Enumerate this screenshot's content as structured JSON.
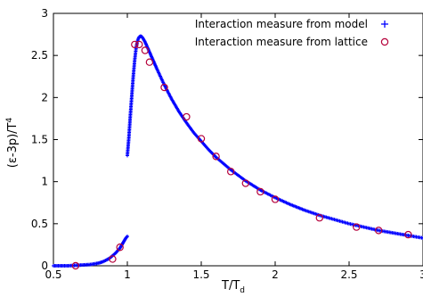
{
  "chart_data": {
    "type": "scatter",
    "xlabel_main": "T/T",
    "xlabel_sub": "d",
    "ylabel_pre": "(ε-3p)/T",
    "ylabel_sup": "4",
    "xlim": [
      0.5,
      3.0
    ],
    "ylim": [
      0,
      3
    ],
    "xticks": [
      0.5,
      1,
      1.5,
      2,
      2.5,
      3
    ],
    "xtick_labels": [
      "0.5",
      "1",
      "1.5",
      "2",
      "2.5",
      "3"
    ],
    "yticks": [
      0,
      0.5,
      1,
      1.5,
      2,
      2.5,
      3
    ],
    "ytick_labels": [
      "0",
      "0.5",
      "1",
      "1.5",
      "2",
      "2.5",
      "3"
    ],
    "grid": false,
    "legend_position": "top-right",
    "series": [
      {
        "name": "Interaction measure from model",
        "marker": "plus",
        "color": "#0000ff",
        "x": [
          0.5,
          0.55,
          0.6,
          0.65,
          0.7,
          0.75,
          0.8,
          0.83,
          0.86,
          0.88,
          0.9,
          0.92,
          0.94,
          0.95,
          0.96,
          0.97,
          0.98,
          0.99,
          1.0,
          1.0,
          1.01,
          1.02,
          1.03,
          1.04,
          1.05,
          1.06,
          1.07,
          1.08,
          1.09,
          1.1,
          1.12,
          1.14,
          1.16,
          1.18,
          1.2,
          1.25,
          1.3,
          1.35,
          1.4,
          1.45,
          1.5,
          1.55,
          1.6,
          1.7,
          1.8,
          1.9,
          2.0,
          2.1,
          2.2,
          2.3,
          2.4,
          2.5,
          2.6,
          2.7,
          2.8,
          2.9,
          3.0
        ],
        "y": [
          0.0,
          0.0,
          0.0,
          0.005,
          0.01,
          0.015,
          0.03,
          0.045,
          0.07,
          0.09,
          0.12,
          0.15,
          0.19,
          0.21,
          0.24,
          0.27,
          0.3,
          0.33,
          0.35,
          1.31,
          1.52,
          1.78,
          2.02,
          2.25,
          2.45,
          2.6,
          2.68,
          2.72,
          2.73,
          2.72,
          2.66,
          2.58,
          2.5,
          2.42,
          2.34,
          2.15,
          1.98,
          1.83,
          1.7,
          1.58,
          1.48,
          1.38,
          1.29,
          1.14,
          1.01,
          0.9,
          0.81,
          0.73,
          0.66,
          0.6,
          0.55,
          0.5,
          0.46,
          0.42,
          0.39,
          0.36,
          0.33
        ]
      },
      {
        "name": "Interaction measure from lattice",
        "marker": "circle",
        "color": "#b5003a",
        "x": [
          0.65,
          0.9,
          0.95,
          1.05,
          1.08,
          1.12,
          1.15,
          1.25,
          1.4,
          1.5,
          1.6,
          1.7,
          1.8,
          1.9,
          2.0,
          2.3,
          2.55,
          2.7,
          2.9
        ],
        "y": [
          0.0,
          0.08,
          0.22,
          2.63,
          2.63,
          2.56,
          2.42,
          2.12,
          1.77,
          1.51,
          1.3,
          1.12,
          0.98,
          0.88,
          0.79,
          0.57,
          0.46,
          0.42,
          0.37
        ]
      }
    ]
  }
}
